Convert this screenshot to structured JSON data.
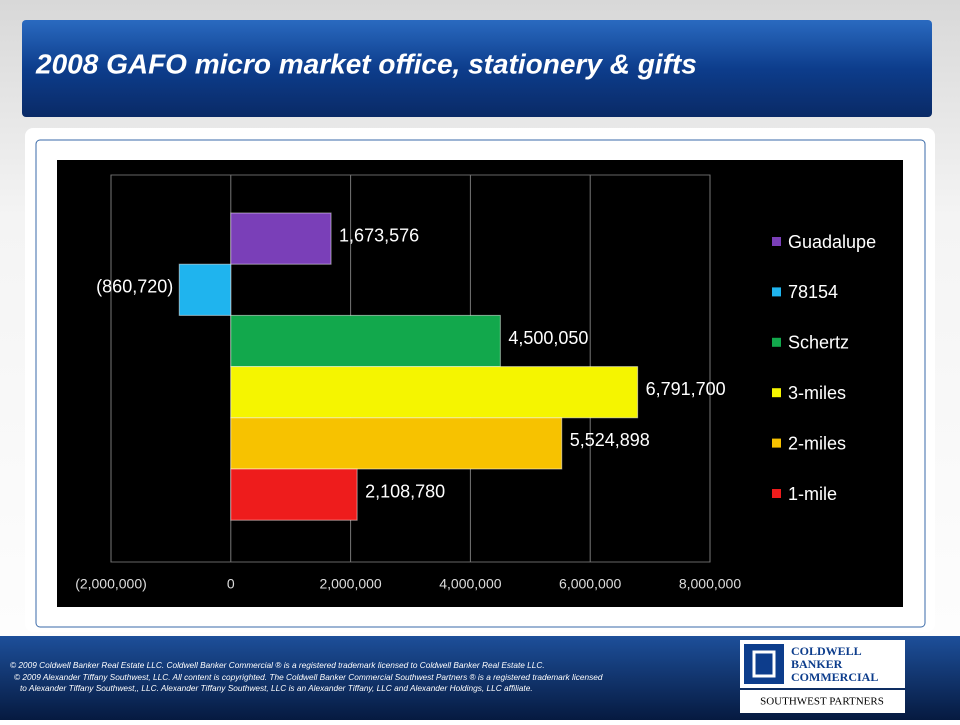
{
  "chart_data": {
    "type": "bar",
    "orientation": "horizontal",
    "title": "2008 GAFO micro market office, stationery & gifts",
    "categories": [
      "Guadalupe",
      "78154",
      "Schertz",
      "3-miles",
      "2-miles",
      "1-mile"
    ],
    "values": [
      1673576,
      -860720,
      4500050,
      6791700,
      5524898,
      2108780
    ],
    "value_labels": [
      "1,673,576",
      "(860,720)",
      "4,500,050",
      "6,791,700",
      "5,524,898",
      "2,108,780"
    ],
    "colors": [
      "#7a3fb8",
      "#1fb4ee",
      "#12a84c",
      "#f5f500",
      "#f7c200",
      "#ee1c1c"
    ],
    "xlim": [
      -2000000,
      8000000
    ],
    "xticks": [
      {
        "value": -2000000,
        "label": "(2,000,000)"
      },
      0,
      {
        "value": 2000000,
        "label": "2,000,000"
      },
      {
        "value": 4000000,
        "label": "4,000,000"
      },
      {
        "value": 6000000,
        "label": "6,000,000"
      },
      {
        "value": 8000000,
        "label": "8,000,000"
      }
    ],
    "grid": true,
    "legend": "right"
  },
  "footer": {
    "lines": [
      "© 2009 Coldwell Banker Real Estate LLC. Coldwell Banker Commercial ® is a registered trademark licensed to Coldwell Banker Real Estate LLC.",
      "© 2009 Alexander Tiffany Southwest, LLC. All content is copyrighted. The Coldwell Banker Commercial Southwest Partners ® is a registered trademark licensed",
      "to Alexander Tiffany Southwest,, LLC.  Alexander Tiffany Southwest, LLC is an Alexander Tiffany, LLC and Alexander Holdings, LLC affiliate."
    ],
    "logo": [
      "COLDWELL",
      "BANKER",
      "COMMERCIAL"
    ],
    "tagline": "SOUTHWEST PARTNERS"
  }
}
